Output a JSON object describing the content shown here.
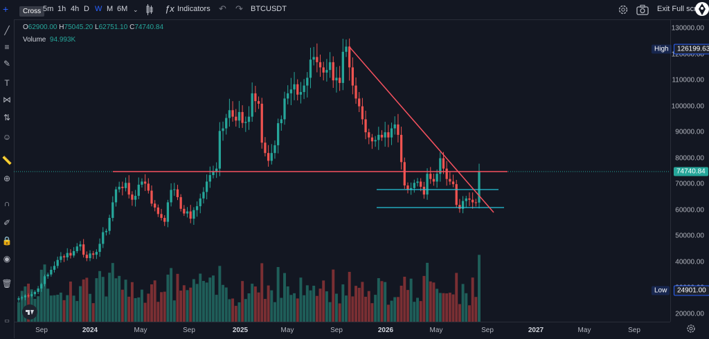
{
  "toolbar": {
    "intervals": [
      "5m",
      "1h",
      "4h",
      "D",
      "W",
      "M",
      "6M"
    ],
    "active_interval": "W",
    "indicators_label": "Indicators",
    "symbol": "BTCUSDT",
    "exit_label": "Exit Full scr",
    "tooltip": "Cross"
  },
  "legend": {
    "open": "62900.00",
    "high": "75045.20",
    "low": "62751.10",
    "close": "74740.84",
    "volume_label": "Volume",
    "volume_value": "94.993K"
  },
  "price_labels": {
    "high_label": "High",
    "high_value": "126199.63",
    "current_value": "74740.84",
    "low_label": "Low",
    "low_value": "24901.00"
  },
  "colors": {
    "up": "#26a69a",
    "down": "#ef5350",
    "trend": "#f7525f",
    "band": "#26c6da",
    "highlight": "#2962ff"
  },
  "chart_data": {
    "type": "candlestick",
    "y_ticks": [
      "130000.00",
      "120000.00",
      "110000.00",
      "100000.00",
      "90000.00",
      "80000.00",
      "70000.00",
      "60000.00",
      "50000.00",
      "40000.00",
      "30000.00",
      "20000.00"
    ],
    "x_ticks": [
      "Sep",
      "2024",
      "May",
      "Sep",
      "2025",
      "May",
      "Sep",
      "2026",
      "May",
      "Sep",
      "2027",
      "May",
      "Sep"
    ],
    "bold_ticks": [
      "2024",
      "2025",
      "2026",
      "2027"
    ],
    "closes": [
      26000,
      26400,
      27100,
      26900,
      27600,
      28500,
      29800,
      31500,
      34500,
      35200,
      37000,
      38500,
      40800,
      42200,
      41800,
      43500,
      42500,
      44200,
      46000,
      46800,
      42800,
      41500,
      43300,
      42800,
      43900,
      47000,
      51500,
      52000,
      57000,
      63000,
      68000,
      69000,
      68500,
      70500,
      66000,
      64000,
      65500,
      69800,
      71000,
      70200,
      67500,
      62500,
      61000,
      58500,
      57000,
      55500,
      63000,
      67800,
      68000,
      65000,
      60500,
      58700,
      59500,
      56700,
      60000,
      61500,
      64500,
      67000,
      71000,
      73500,
      75000,
      76000,
      90500,
      91500,
      95500,
      98500,
      96000,
      94500,
      97800,
      93600,
      94000,
      96000,
      105000,
      102000,
      101000,
      86000,
      82000,
      79000,
      82000,
      85000,
      93500,
      95000,
      103000,
      105000,
      106500,
      108500,
      104500,
      105500,
      108000,
      111000,
      118000,
      119000,
      117000,
      115000,
      113000,
      114000,
      117000,
      110000,
      111000,
      109000,
      121000,
      123000,
      115000,
      108000,
      103000,
      100000,
      95000,
      90000,
      88000,
      86500,
      87000,
      89000,
      88000,
      90000,
      88000,
      91500,
      93000,
      89000,
      78500,
      69500,
      68000,
      68500,
      70500,
      71000,
      69000,
      66000,
      74000,
      72000,
      71000,
      74000,
      80000,
      76000,
      72000,
      71000,
      70000,
      62000,
      60500,
      63500,
      64500,
      64000,
      63000,
      62900,
      74740
    ],
    "ylim": [
      17000,
      133500
    ]
  }
}
